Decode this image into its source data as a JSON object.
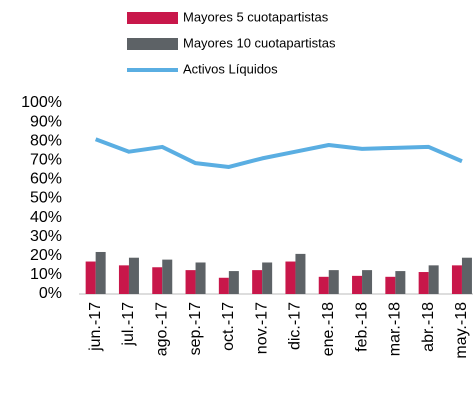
{
  "chart_data": {
    "type": "bar",
    "categories": [
      "jun.-17",
      "jul.-17",
      "ago.-17",
      "sep.-17",
      "oct.-17",
      "nov.-17",
      "dic.-17",
      "ene.-18",
      "feb.-18",
      "mar.-18",
      "abr.-18",
      "may.-18"
    ],
    "series": [
      {
        "name": "Mayores 5 cuotapartistas",
        "type": "bar",
        "color": "#c8174a",
        "values": [
          17,
          15,
          14,
          12.5,
          8.5,
          12.5,
          17,
          9,
          9.5,
          9,
          11.5,
          15
        ]
      },
      {
        "name": "Mayores 10 cuotapartistas",
        "type": "bar",
        "color": "#5d6266",
        "values": [
          22,
          19,
          18,
          16.5,
          12,
          16.5,
          21,
          12.5,
          12.5,
          12,
          15,
          19
        ]
      },
      {
        "name": "Activos Líquidos",
        "type": "line",
        "color": "#5aaee2",
        "values": [
          81,
          74.5,
          77,
          68.5,
          66.5,
          71,
          74.5,
          78,
          76,
          76.5,
          77,
          69.5
        ]
      }
    ],
    "ylim": [
      0,
      100
    ],
    "yticks": [
      {
        "value": 0,
        "label": "0%"
      },
      {
        "value": 10,
        "label": "10%"
      },
      {
        "value": 20,
        "label": "20%"
      },
      {
        "value": 30,
        "label": "30%"
      },
      {
        "value": 40,
        "label": "40%"
      },
      {
        "value": 50,
        "label": "50%"
      },
      {
        "value": 60,
        "label": "60%"
      },
      {
        "value": 70,
        "label": "70%"
      },
      {
        "value": 80,
        "label": "80%"
      },
      {
        "value": 90,
        "label": "90%"
      },
      {
        "value": 100,
        "label": "100%"
      }
    ],
    "legend": "top"
  }
}
